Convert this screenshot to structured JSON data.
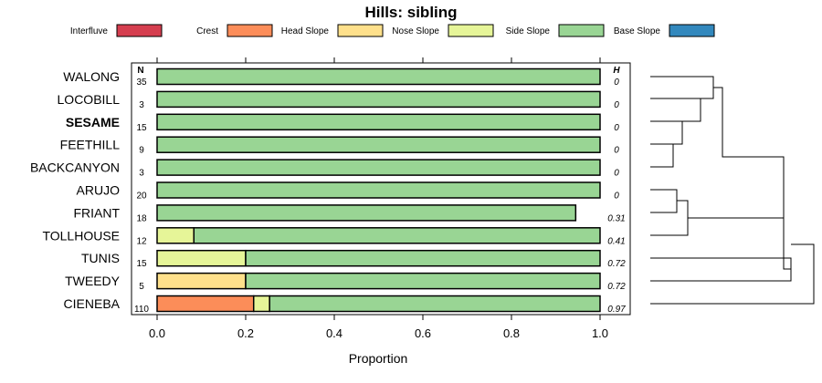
{
  "chart_data": {
    "type": "bar",
    "subtype": "stacked-horizontal-proportion",
    "title": "Hills: sibling",
    "xlabel": "Proportion",
    "ylabel": "",
    "xlim": [
      0,
      1
    ],
    "x_ticks": [
      {
        "value": 0,
        "label": "0.0"
      },
      {
        "value": 0.2,
        "label": "0.2"
      },
      {
        "value": 0.4,
        "label": "0.4"
      },
      {
        "value": 0.6,
        "label": "0.6"
      },
      {
        "value": 0.8,
        "label": "0.8"
      },
      {
        "value": 1.0,
        "label": "1.0"
      }
    ],
    "legend_position": "top",
    "n_header": "N",
    "h_header": "H",
    "legend": [
      {
        "name": "Interfluve",
        "color": "#D53E4F"
      },
      {
        "name": "Crest",
        "color": "#FC8D59"
      },
      {
        "name": "Head Slope",
        "color": "#FEE08B"
      },
      {
        "name": "Nose Slope",
        "color": "#E6F598"
      },
      {
        "name": "Side Slope",
        "color": "#99D594"
      },
      {
        "name": "Base Slope",
        "color": "#3288BD"
      }
    ],
    "rows": [
      {
        "label": "WALONG",
        "bold": false,
        "n": "35",
        "h": "0",
        "segments": [
          {
            "name": "Side Slope",
            "value": 1.0
          }
        ]
      },
      {
        "label": "LOCOBILL",
        "bold": false,
        "n": "3",
        "h": "0",
        "segments": [
          {
            "name": "Side Slope",
            "value": 1.0
          }
        ]
      },
      {
        "label": "SESAME",
        "bold": true,
        "n": "15",
        "h": "0",
        "segments": [
          {
            "name": "Side Slope",
            "value": 1.0
          }
        ]
      },
      {
        "label": "FEETHILL",
        "bold": false,
        "n": "9",
        "h": "0",
        "segments": [
          {
            "name": "Side Slope",
            "value": 1.0
          }
        ]
      },
      {
        "label": "BACKCANYON",
        "bold": false,
        "n": "3",
        "h": "0",
        "segments": [
          {
            "name": "Side Slope",
            "value": 1.0
          }
        ]
      },
      {
        "label": "ARUJO",
        "bold": false,
        "n": "20",
        "h": "0",
        "segments": [
          {
            "name": "Side Slope",
            "value": 1.0
          }
        ]
      },
      {
        "label": "FRIANT",
        "bold": false,
        "n": "18",
        "h": "0.31",
        "segments": [
          {
            "name": "Side Slope",
            "value": 0.945
          }
        ]
      },
      {
        "label": "TOLLHOUSE",
        "bold": false,
        "n": "12",
        "h": "0.41",
        "segments": [
          {
            "name": "Nose Slope",
            "value": 0.083
          },
          {
            "name": "Side Slope",
            "value": 0.917
          }
        ]
      },
      {
        "label": "TUNIS",
        "bold": false,
        "n": "15",
        "h": "0.72",
        "segments": [
          {
            "name": "Nose Slope",
            "value": 0.2
          },
          {
            "name": "Side Slope",
            "value": 0.8
          }
        ]
      },
      {
        "label": "TWEEDY",
        "bold": false,
        "n": "5",
        "h": "0.72",
        "segments": [
          {
            "name": "Head Slope",
            "value": 0.2
          },
          {
            "name": "Side Slope",
            "value": 0.8
          }
        ]
      },
      {
        "label": "CIENEBA",
        "bold": false,
        "n": "110",
        "h": "0.97",
        "segments": [
          {
            "name": "Crest",
            "value": 0.218
          },
          {
            "name": "Nose Slope",
            "value": 0.036
          },
          {
            "name": "Side Slope",
            "value": 0.746
          }
        ]
      }
    ]
  }
}
